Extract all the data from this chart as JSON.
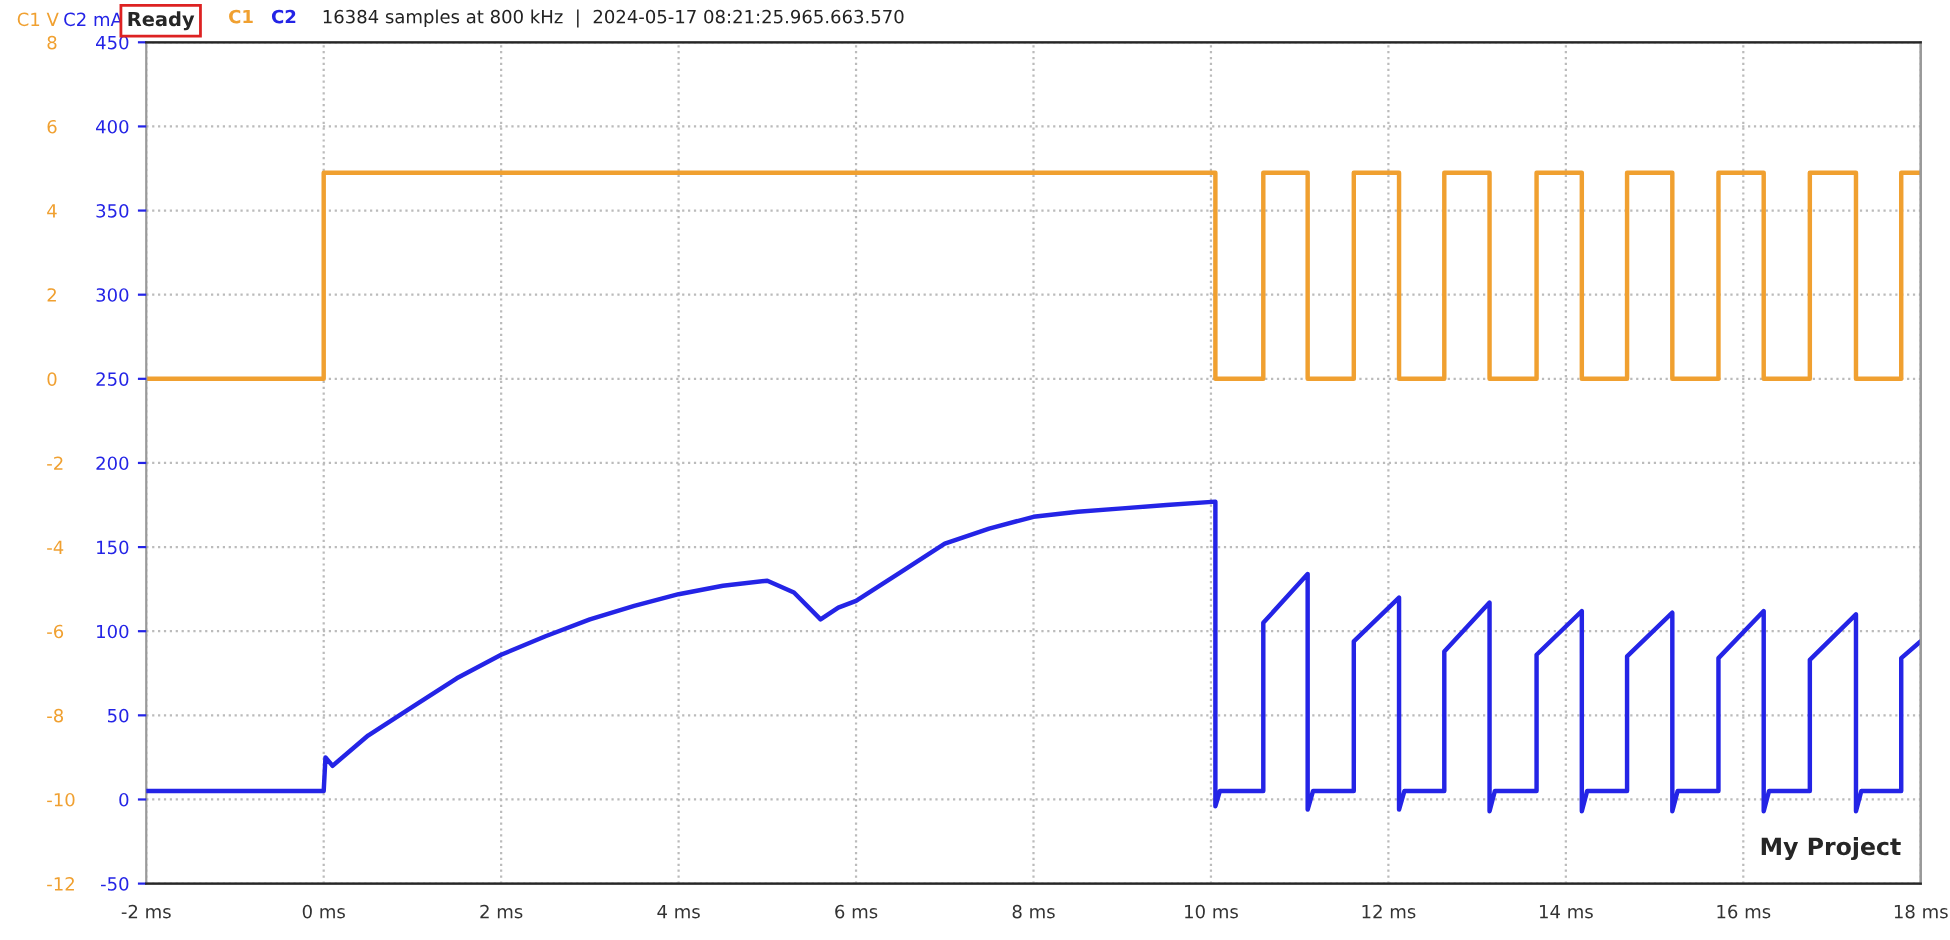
{
  "chart_data": {
    "type": "line",
    "ylabel": "C1 V",
    "y2label": "C2 mA",
    "annotations": [
      "Ready",
      "16384 samples at 800 kHz  |  2024-05-17 08:21:25.965.663.570",
      "My Project"
    ],
    "xlim": [
      -2,
      18
    ],
    "xticks": [
      {
        "value": -2,
        "label": "-2 ms"
      },
      {
        "value": 0,
        "label": "0 ms"
      },
      {
        "value": 2,
        "label": "2 ms"
      },
      {
        "value": 4,
        "label": "4 ms"
      },
      {
        "value": 6,
        "label": "6 ms"
      },
      {
        "value": 8,
        "label": "8 ms"
      },
      {
        "value": 10,
        "label": "10 ms"
      },
      {
        "value": 12,
        "label": "12 ms"
      },
      {
        "value": 14,
        "label": "14 ms"
      },
      {
        "value": 16,
        "label": "16 ms"
      },
      {
        "value": 18,
        "label": "18 ms"
      }
    ],
    "ylim": [
      -12,
      8
    ],
    "yticks": [
      -12,
      -10,
      -8,
      -6,
      -4,
      -2,
      0,
      2,
      4,
      6,
      8
    ],
    "y2lim": [
      -50,
      450
    ],
    "y2ticks": [
      -50,
      0,
      50,
      100,
      150,
      200,
      250,
      300,
      350,
      400,
      450
    ],
    "grid": true,
    "line_style": "solid",
    "marker": "none",
    "series": [
      {
        "name": "C1",
        "color": "#f0a030",
        "axis": "y",
        "x": [
          -2,
          0,
          0,
          10.05,
          10.05,
          10.59,
          10.59,
          11.09,
          11.09,
          11.61,
          11.61,
          12.12,
          12.12,
          12.63,
          12.63,
          13.14,
          13.14,
          13.67,
          13.67,
          14.18,
          14.18,
          14.69,
          14.69,
          15.2,
          15.2,
          15.72,
          15.72,
          16.23,
          16.23,
          16.75,
          16.75,
          17.27,
          17.27,
          17.78,
          17.78,
          18
        ],
        "values": [
          0,
          0,
          4.9,
          4.9,
          0,
          0,
          4.9,
          4.9,
          0,
          0,
          4.9,
          4.9,
          0,
          0,
          4.9,
          4.9,
          0,
          0,
          4.9,
          4.9,
          0,
          0,
          4.9,
          4.9,
          0,
          0,
          4.9,
          4.9,
          0,
          0,
          4.9,
          4.9,
          0,
          0,
          4.9,
          4.9
        ]
      },
      {
        "name": "C2",
        "color": "#2424e6",
        "axis": "y2",
        "x": [
          -2,
          0,
          0.02,
          0.1,
          0.5,
          1,
          1.5,
          2,
          2.5,
          3,
          3.5,
          4,
          4.5,
          5,
          5.3,
          5.6,
          5.8,
          6,
          6.5,
          7,
          7.5,
          8,
          8.5,
          9,
          9.5,
          10.05,
          10.05,
          10.1,
          10.59,
          10.59,
          11.09,
          11.09,
          11.15,
          11.61,
          11.61,
          12.12,
          12.12,
          12.18,
          12.63,
          12.63,
          13.14,
          13.14,
          13.2,
          13.67,
          13.67,
          14.18,
          14.18,
          14.24,
          14.69,
          14.69,
          15.2,
          15.2,
          15.26,
          15.72,
          15.72,
          16.23,
          16.23,
          16.29,
          16.75,
          16.75,
          17.27,
          17.27,
          17.33,
          17.78,
          17.78,
          18
        ],
        "values": [
          5,
          5,
          25,
          20,
          38,
          55,
          72,
          86,
          97,
          107,
          115,
          122,
          127,
          130,
          123,
          107,
          114,
          118,
          135,
          152,
          161,
          168,
          171,
          173,
          175,
          177,
          -4,
          5,
          5,
          105,
          134,
          -6,
          5,
          5,
          94,
          120,
          -6,
          5,
          5,
          88,
          117,
          -7,
          5,
          5,
          86,
          112,
          -7,
          5,
          5,
          85,
          111,
          -7,
          5,
          5,
          84,
          112,
          -7,
          5,
          5,
          83,
          110,
          -7,
          5,
          5,
          84,
          94
        ]
      }
    ]
  }
}
